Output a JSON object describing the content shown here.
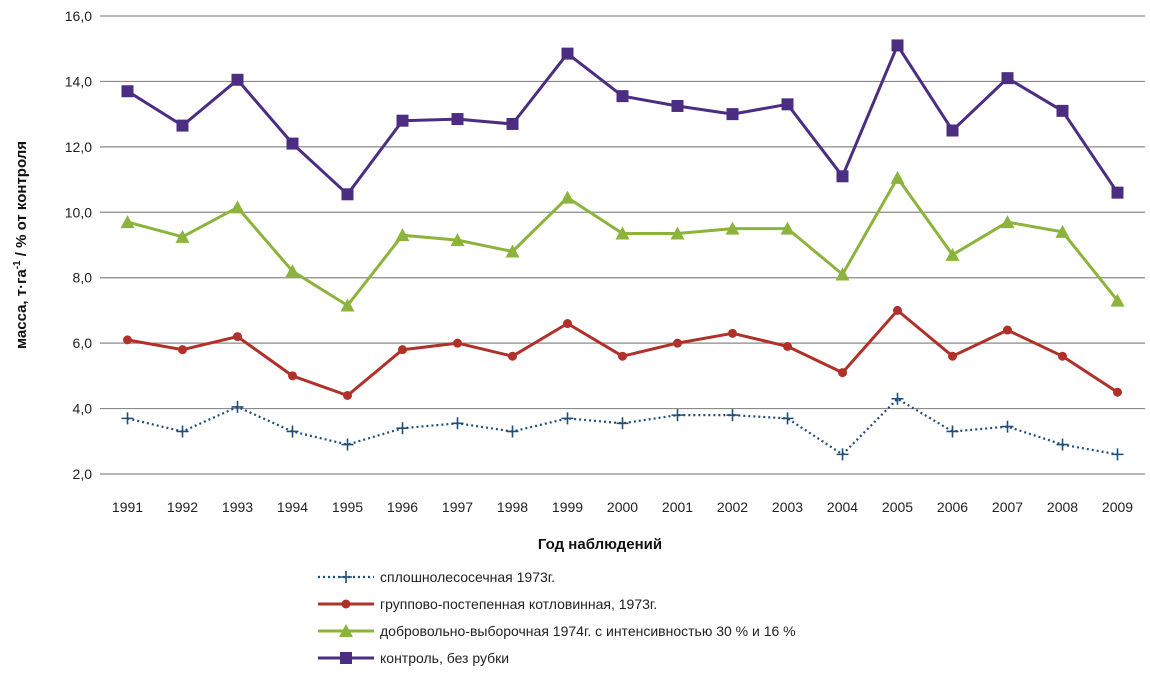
{
  "chart_data": {
    "type": "line",
    "title": "",
    "xlabel": "Год наблюдений",
    "ylabel_parts": {
      "main": "масса, т·га",
      "superscript": "-1",
      "suffix": " / % от контроля"
    },
    "ylim": [
      2.0,
      16.0
    ],
    "yticks": [
      "2,0",
      "4,0",
      "6,0",
      "8,0",
      "10,0",
      "12,0",
      "14,0",
      "16,0"
    ],
    "ytick_values": [
      2,
      4,
      6,
      8,
      10,
      12,
      14,
      16
    ],
    "grid": "horizontal",
    "legend_position": "bottom",
    "categories": [
      "1991",
      "1992",
      "1993",
      "1994",
      "1995",
      "1996",
      "1997",
      "1998",
      "1999",
      "2000",
      "2001",
      "2002",
      "2003",
      "2004",
      "2005",
      "2006",
      "2007",
      "2008",
      "2009"
    ],
    "series": [
      {
        "name": "сплошнолесосечная 1973г.",
        "color": "#1f4e79",
        "style": "dotted",
        "marker": "cross",
        "values": [
          3.7,
          3.3,
          4.05,
          3.3,
          2.9,
          3.4,
          3.55,
          3.3,
          3.7,
          3.55,
          3.8,
          3.8,
          3.7,
          2.6,
          4.3,
          3.3,
          3.45,
          2.9,
          2.6
        ]
      },
      {
        "name": "группово-постепенная котловинная,  1973г.",
        "color": "#b0302a",
        "style": "solid",
        "marker": "circle",
        "values": [
          6.1,
          5.8,
          6.2,
          5.0,
          4.4,
          5.8,
          6.0,
          5.6,
          6.6,
          5.6,
          6.0,
          6.3,
          5.9,
          5.1,
          7.0,
          5.6,
          6.4,
          5.6,
          4.5
        ]
      },
      {
        "name": "добровольно-выборочная  1974г. с интенсивностью 30 % и 16 %",
        "color": "#8cb43c",
        "style": "solid",
        "marker": "triangle",
        "values": [
          9.7,
          9.25,
          10.15,
          8.2,
          7.15,
          9.3,
          9.15,
          8.8,
          10.45,
          9.35,
          9.35,
          9.5,
          9.5,
          8.1,
          11.05,
          8.7,
          9.7,
          9.4,
          7.3
        ]
      },
      {
        "name": "контроль, без рубки",
        "color": "#4b2d82",
        "style": "solid",
        "marker": "square",
        "values": [
          13.7,
          12.65,
          14.05,
          12.1,
          10.55,
          12.8,
          12.85,
          12.7,
          14.85,
          13.55,
          13.25,
          13.0,
          13.3,
          11.1,
          15.1,
          12.5,
          14.1,
          13.1,
          10.6
        ]
      }
    ]
  }
}
